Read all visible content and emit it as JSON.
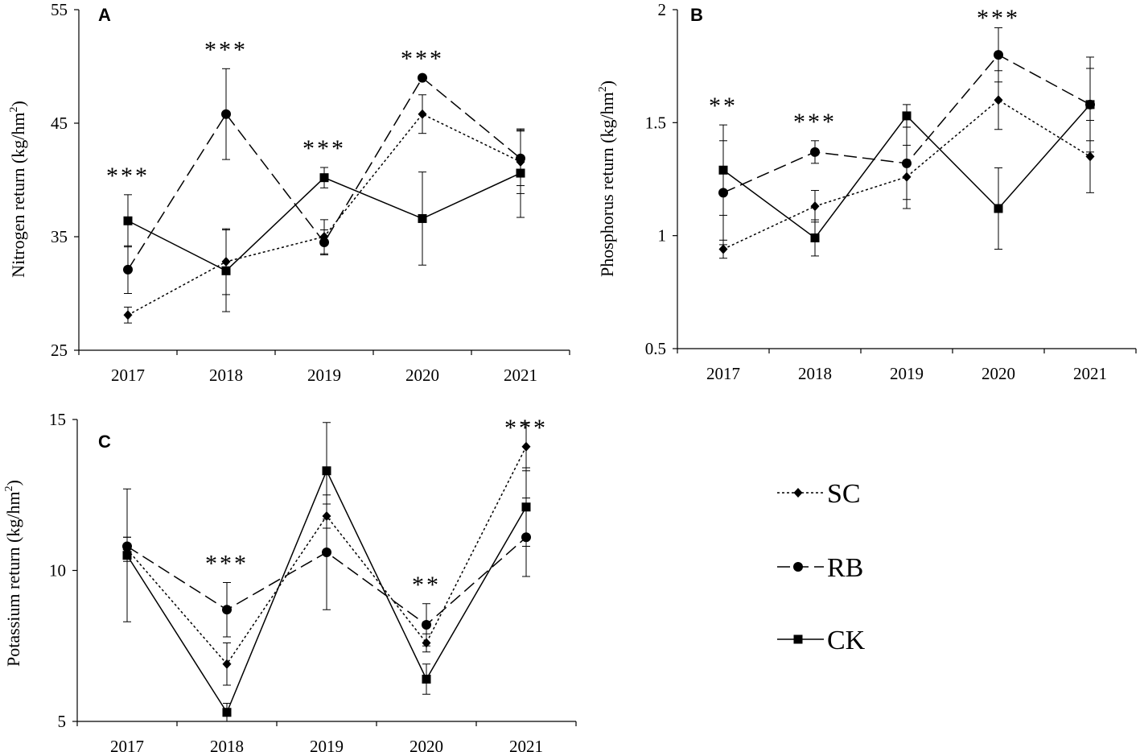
{
  "chart_data": [
    {
      "type": "line",
      "panel": "A",
      "ylabel": "Nitrogen return (kg/hm²)",
      "ylabel_main": "Nitrogen return (kg/hm",
      "ylabel_sup": "2",
      "ylabel_end": ")",
      "ylim": [
        25,
        55
      ],
      "yticks": [
        25,
        35,
        45,
        55
      ],
      "ytick_labels": [
        "25",
        "35",
        "45",
        "55"
      ],
      "categories": [
        "2017",
        "2018",
        "2019",
        "2020",
        "2021"
      ],
      "series": [
        {
          "name": "SC",
          "values": [
            28.1,
            32.8,
            35.0,
            45.8,
            41.6
          ],
          "errors": [
            0.7,
            2.9,
            1.5,
            1.7,
            2.8
          ]
        },
        {
          "name": "RB",
          "values": [
            32.1,
            45.8,
            34.5,
            49.0,
            41.9
          ],
          "errors": [
            2.1,
            4.0,
            1.1,
            0,
            2.4
          ]
        },
        {
          "name": "CK",
          "values": [
            36.4,
            32.0,
            40.2,
            36.6,
            40.6
          ],
          "errors": [
            2.3,
            3.6,
            0.9,
            4.1,
            3.9
          ]
        }
      ],
      "annotations": [
        "***",
        "***",
        "***",
        "***",
        ""
      ]
    },
    {
      "type": "line",
      "panel": "B",
      "ylabel": "Phosphorus return (kg/hm²)",
      "ylabel_main": "Phosphorus return (kg/hm",
      "ylabel_sup": "2",
      "ylabel_end": ")",
      "ylim": [
        0.5,
        2
      ],
      "yticks": [
        0.5,
        1,
        1.5,
        2
      ],
      "ytick_labels": [
        "0.5",
        "1",
        "1.5",
        "2"
      ],
      "categories": [
        "2017",
        "2018",
        "2019",
        "2020",
        "2021"
      ],
      "series": [
        {
          "name": "SC",
          "values": [
            0.94,
            1.13,
            1.26,
            1.6,
            1.35
          ],
          "errors": [
            0.04,
            0.07,
            0.14,
            0.13,
            0.16
          ]
        },
        {
          "name": "RB",
          "values": [
            1.19,
            1.37,
            1.32,
            1.8,
            1.58
          ],
          "errors": [
            0.23,
            0.05,
            0.16,
            0.12,
            0.16
          ]
        },
        {
          "name": "CK",
          "values": [
            1.29,
            0.99,
            1.53,
            1.12,
            1.58
          ],
          "errors": [
            0.2,
            0.08,
            0.05,
            0.18,
            0.21
          ]
        }
      ],
      "annotations": [
        "**",
        "***",
        "",
        "***",
        ""
      ]
    },
    {
      "type": "line",
      "panel": "C",
      "ylabel": "Potassium return (kg/hm²)",
      "ylabel_main": "Potassium return (kg/hm",
      "ylabel_sup": "2",
      "ylabel_end": ")",
      "ylim": [
        5,
        15
      ],
      "yticks": [
        5,
        10,
        15
      ],
      "ytick_labels": [
        "5",
        "10",
        "15"
      ],
      "categories": [
        "2017",
        "2018",
        "2019",
        "2020",
        "2021"
      ],
      "series": [
        {
          "name": "SC",
          "values": [
            10.7,
            6.9,
            11.8,
            7.6,
            14.1
          ],
          "errors": [
            0.4,
            0.7,
            0.4,
            0.3,
            0.8
          ]
        },
        {
          "name": "RB",
          "values": [
            10.8,
            8.7,
            10.6,
            8.2,
            11.1
          ],
          "errors": [
            0.3,
            0.9,
            1.9,
            0.7,
            1.3
          ]
        },
        {
          "name": "CK",
          "values": [
            10.5,
            5.3,
            13.3,
            6.4,
            12.1
          ],
          "errors": [
            2.2,
            0.3,
            1.6,
            0.5,
            1.3
          ]
        }
      ],
      "annotations": [
        "",
        "***",
        "",
        "**",
        "***"
      ]
    }
  ],
  "legend": {
    "items": [
      {
        "name": "SC",
        "marker": "diamond",
        "dash": "dotted"
      },
      {
        "name": "RB",
        "marker": "circle",
        "dash": "dashed"
      },
      {
        "name": "CK",
        "marker": "square",
        "dash": "solid"
      }
    ]
  },
  "colors": {
    "ink": "#000000",
    "background": "#ffffff"
  }
}
